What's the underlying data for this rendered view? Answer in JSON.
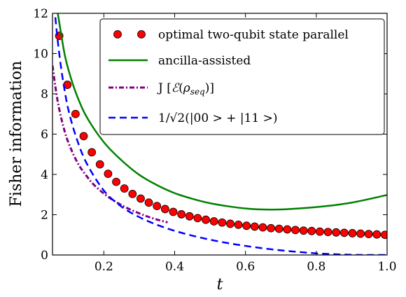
{
  "chart_data": {
    "type": "line",
    "xlabel": "t",
    "ylabel": "Fisher information",
    "xlim": [
      0.055,
      1.0
    ],
    "ylim": [
      0,
      12
    ],
    "x_ticks": [
      0.2,
      0.4,
      0.6,
      0.8,
      1.0
    ],
    "x_tick_labels": [
      "0.2",
      "0.4",
      "0.6",
      "0.8",
      "1.0"
    ],
    "y_ticks": [
      0,
      2,
      4,
      6,
      8,
      10,
      12
    ],
    "y_tick_labels": [
      "0",
      "2",
      "4",
      "6",
      "8",
      "10",
      "12"
    ],
    "grid": false,
    "legend_position": "top-right",
    "series": [
      {
        "name": "optimal two-qubit state parallel",
        "style": "markers",
        "color": "#ff0000",
        "x": [
          0.074,
          0.097,
          0.12,
          0.143,
          0.166,
          0.189,
          0.212,
          0.235,
          0.258,
          0.281,
          0.304,
          0.327,
          0.35,
          0.373,
          0.396,
          0.419,
          0.442,
          0.465,
          0.488,
          0.511,
          0.534,
          0.557,
          0.58,
          0.603,
          0.626,
          0.649,
          0.672,
          0.695,
          0.718,
          0.741,
          0.764,
          0.787,
          0.81,
          0.833,
          0.856,
          0.879,
          0.902,
          0.925,
          0.948,
          0.971,
          0.994
        ],
        "y": [
          10.88,
          8.45,
          7.0,
          5.9,
          5.1,
          4.5,
          4.03,
          3.63,
          3.3,
          3.03,
          2.8,
          2.6,
          2.43,
          2.28,
          2.14,
          2.02,
          1.92,
          1.83,
          1.75,
          1.67,
          1.61,
          1.55,
          1.5,
          1.45,
          1.41,
          1.37,
          1.33,
          1.3,
          1.27,
          1.24,
          1.21,
          1.19,
          1.16,
          1.14,
          1.12,
          1.1,
          1.08,
          1.06,
          1.04,
          1.02,
          1.0
        ]
      },
      {
        "name": "ancilla-assisted",
        "style": "solid",
        "color": "#008000",
        "x": [
          0.07,
          0.08,
          0.09,
          0.1,
          0.12,
          0.15,
          0.2,
          0.25,
          0.3,
          0.35,
          0.4,
          0.45,
          0.5,
          0.55,
          0.6,
          0.65,
          0.7,
          0.75,
          0.8,
          0.85,
          0.9,
          0.95,
          1.0
        ],
        "y": [
          12.0,
          10.9,
          9.9,
          9.2,
          8.1,
          6.9,
          5.6,
          4.7,
          3.98,
          3.47,
          3.07,
          2.79,
          2.57,
          2.42,
          2.31,
          2.26,
          2.26,
          2.31,
          2.38,
          2.47,
          2.6,
          2.78,
          2.98
        ]
      },
      {
        "name": "J [ℰ(ρseq)]",
        "style": "dash-dot",
        "color": "#800080",
        "x": [
          0.055,
          0.07,
          0.09,
          0.11,
          0.13,
          0.15,
          0.17,
          0.2,
          0.23,
          0.26,
          0.29,
          0.32,
          0.35,
          0.38
        ],
        "y": [
          9.4,
          7.6,
          6.1,
          5.15,
          4.45,
          3.95,
          3.52,
          3.05,
          2.68,
          2.38,
          2.14,
          1.93,
          1.76,
          1.62
        ]
      },
      {
        "name": "1/√2(|00> + |11>)",
        "style": "dashed",
        "color": "#0000ff",
        "x": [
          0.063,
          0.07,
          0.08,
          0.09,
          0.1,
          0.12,
          0.15,
          0.2,
          0.25,
          0.3,
          0.35,
          0.4,
          0.45,
          0.5,
          0.55,
          0.6,
          0.65,
          0.7,
          0.75,
          0.8,
          0.85,
          0.9,
          0.95,
          1.0
        ],
        "y": [
          11.8,
          10.6,
          9.2,
          8.1,
          7.2,
          5.95,
          4.6,
          3.2,
          2.4,
          1.88,
          1.5,
          1.2,
          0.96,
          0.76,
          0.59,
          0.45,
          0.33,
          0.23,
          0.15,
          0.08,
          0.04,
          0.01,
          0.0,
          0.0
        ]
      }
    ]
  }
}
